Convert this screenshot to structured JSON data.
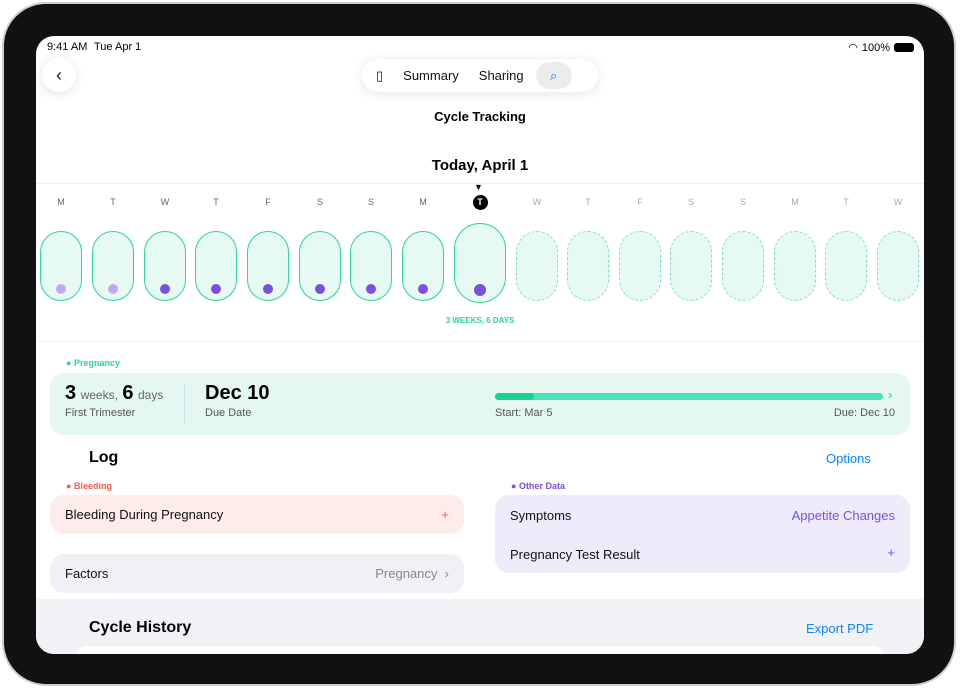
{
  "status": {
    "time": "9:41 AM",
    "date": "Tue Apr 1",
    "battery": "100%"
  },
  "nav": {
    "back_icon": "chevron-left-icon",
    "sidebar_icon": "sidebar-icon",
    "tabs": [
      "Summary",
      "Sharing"
    ],
    "search_icon": "search-icon"
  },
  "title": "Cycle Tracking",
  "today_label": "Today, April 1",
  "days": [
    {
      "d": "M",
      "dot": "light"
    },
    {
      "d": "T",
      "dot": "light"
    },
    {
      "d": "W",
      "dot": "dark"
    },
    {
      "d": "T",
      "dot": "dark"
    },
    {
      "d": "F",
      "dot": "dark"
    },
    {
      "d": "S",
      "dot": "dark"
    },
    {
      "d": "S",
      "dot": "dark"
    },
    {
      "d": "M",
      "dot": "dark"
    },
    {
      "d": "T",
      "dot": "dark",
      "today": true
    },
    {
      "d": "W",
      "future": true
    },
    {
      "d": "T",
      "future": true
    },
    {
      "d": "F",
      "future": true
    },
    {
      "d": "S",
      "future": true
    },
    {
      "d": "S",
      "future": true
    },
    {
      "d": "M",
      "future": true
    },
    {
      "d": "T",
      "future": true
    },
    {
      "d": "W",
      "future": true
    }
  ],
  "weeks_label": "3 WEEKS, 6 DAYS",
  "pregnancy": {
    "label": "Pregnancy",
    "weeks": "3",
    "weeks_unit": "weeks,",
    "days": "6",
    "days_unit": "days",
    "trimester": "First Trimester",
    "due": "Dec 10",
    "due_label": "Due Date",
    "start_text": "Start: Mar 5",
    "due_text": "Due: Dec 10",
    "progress": 0.06
  },
  "log": {
    "title": "Log",
    "options": "Options",
    "bleeding_label": "Bleeding",
    "bleeding_row": "Bleeding During Pregnancy",
    "factors": "Factors",
    "factors_value": "Pregnancy",
    "other_label": "Other Data",
    "symptoms": "Symptoms",
    "symptoms_value": "Appetite Changes",
    "test": "Pregnancy Test Result"
  },
  "history": {
    "title": "Cycle History",
    "export": "Export PDF"
  },
  "colors": {
    "accent": "#2bd6a2",
    "purple": "#7b4fe0",
    "red": "#ff5a4f",
    "blue": "#0a84ff"
  }
}
